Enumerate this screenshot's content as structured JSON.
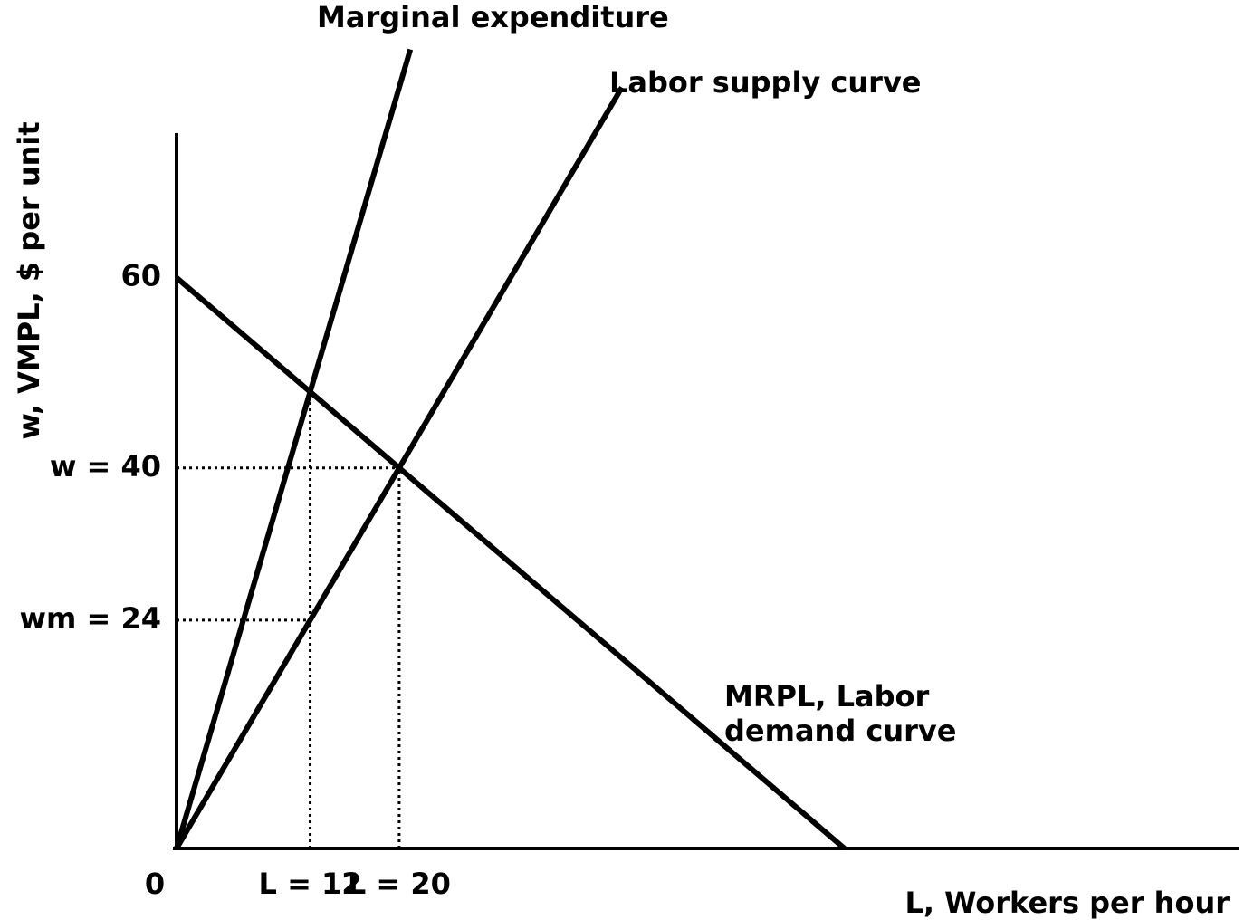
{
  "chart_data": {
    "type": "line",
    "xlabel": "L, Workers per hour",
    "ylabel": "w, VMPL, $ per unit",
    "xlim": [
      0,
      95.4
    ],
    "ylim": [
      0,
      75.2
    ],
    "xticks": [
      0,
      {
        "value": 12,
        "label": "L = 12"
      },
      {
        "value": 20,
        "label": "L = 20"
      }
    ],
    "yticks": [
      60,
      {
        "value": 40,
        "label": "w = 40"
      },
      {
        "value": 24,
        "label": "wm = 24"
      }
    ],
    "series": [
      {
        "name": "Marginal expenditure",
        "color": "#000000",
        "x": [
          0,
          12,
          21
        ],
        "values": [
          0,
          48,
          84
        ]
      },
      {
        "name": "Labor supply curve",
        "color": "#000000",
        "x": [
          0,
          12,
          20,
          40
        ],
        "values": [
          0,
          24,
          40,
          80
        ]
      },
      {
        "name": "MRPL, Labor demand curve",
        "color": "#000000",
        "x": [
          0,
          12,
          20,
          60
        ],
        "values": [
          60,
          48,
          40,
          0
        ]
      }
    ]
  }
}
